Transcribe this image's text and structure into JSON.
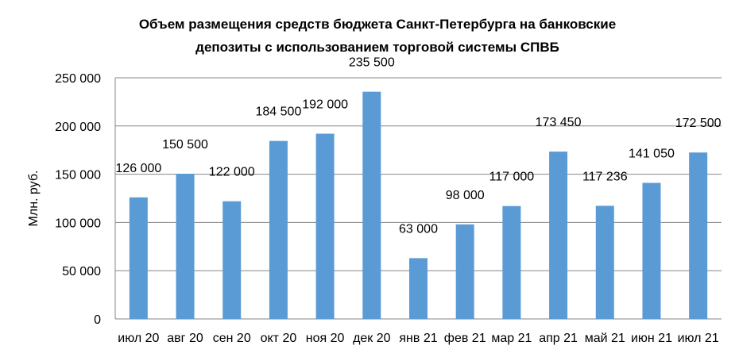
{
  "chart_data": {
    "type": "bar",
    "title": [
      "Объем размещения средств бюджета Санкт-Петербурга на  банковские",
      "депозиты с использованием торговой системы СПВБ"
    ],
    "xlabel": "",
    "ylabel": "Млн. руб.",
    "ylim": [
      0,
      250000
    ],
    "yticks": [
      "0",
      "50 000",
      "100 000",
      "150 000",
      "200 000",
      "250 000"
    ],
    "grid": true,
    "bar_color": "#5B9BD5",
    "categories": [
      "июл 20",
      "авг 20",
      "сен 20",
      "окт 20",
      "ноя 20",
      "дек 20",
      "янв 21",
      "фев 21",
      "мар 21",
      "апр 21",
      "май 21",
      "июн 21",
      "июл 21"
    ],
    "values": [
      126000,
      150500,
      122000,
      184500,
      192000,
      235500,
      63000,
      98000,
      117000,
      173450,
      117236,
      141050,
      172500
    ],
    "labels": [
      "126 000",
      "150 500",
      "122 000",
      "184 500",
      "192 000",
      "235 500",
      "63 000",
      "98 000",
      "117 000",
      "173 450",
      "117 236",
      "141 050",
      "172 500"
    ]
  }
}
